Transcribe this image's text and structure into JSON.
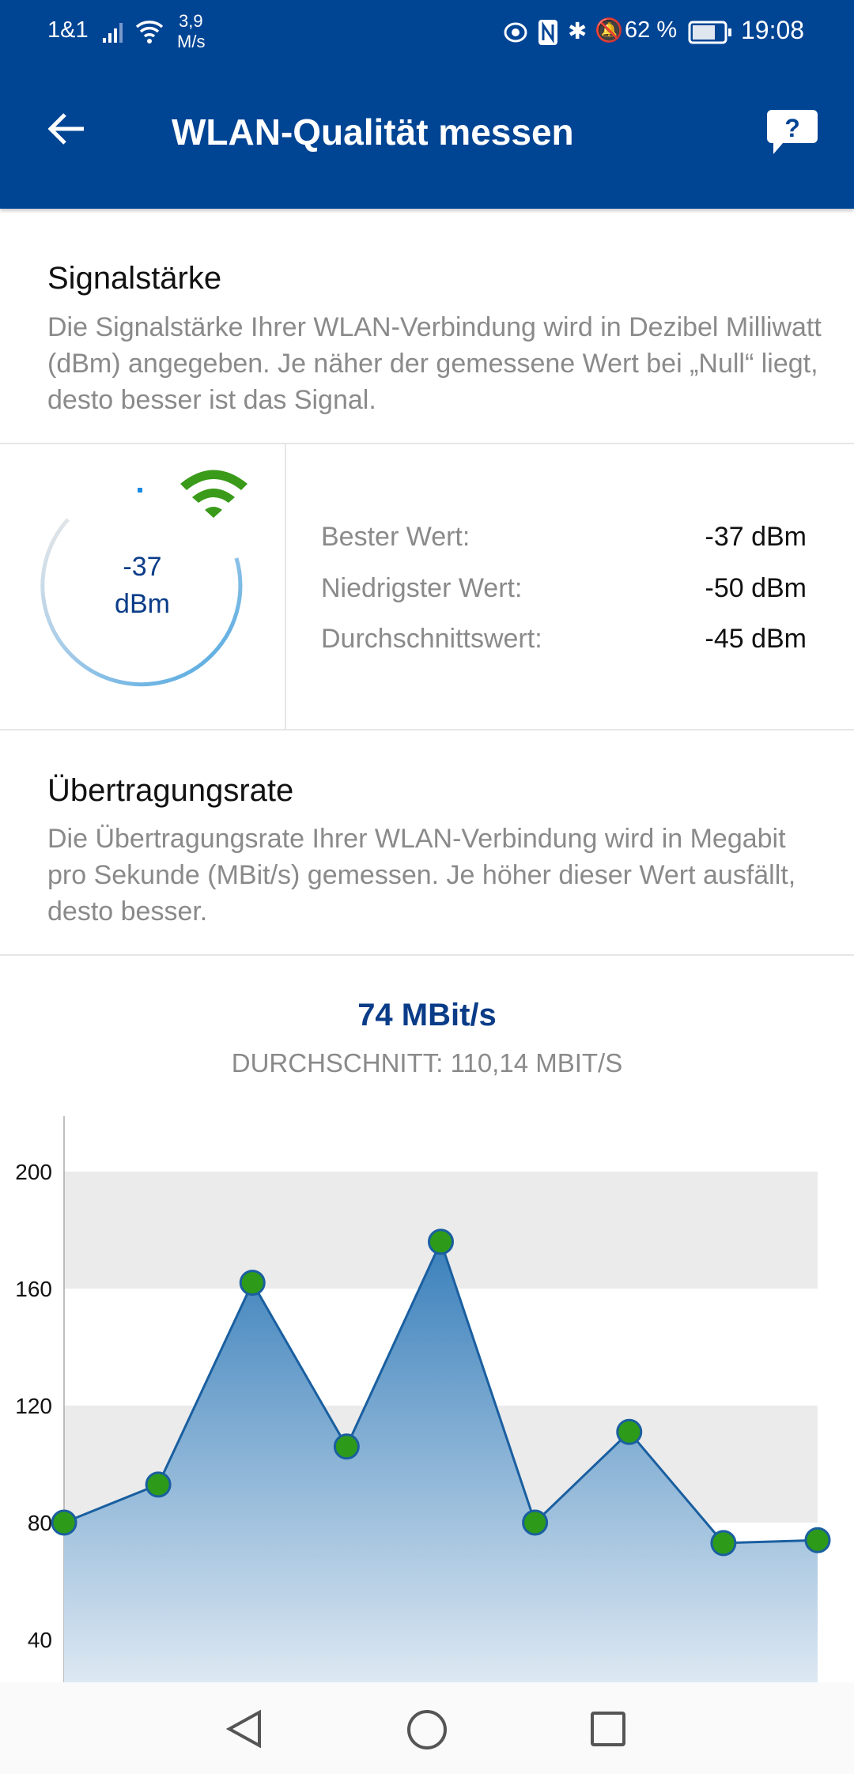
{
  "status_bar": {
    "carrier": "1&1",
    "speed_value": "3,9",
    "speed_unit": "M/s",
    "battery": "62 %",
    "time": "19:08",
    "icons": [
      "signal-icon",
      "wifi-icon",
      "eye-icon",
      "nfc-icon",
      "bluetooth-icon",
      "bell-off-icon",
      "battery-icon"
    ]
  },
  "app_bar": {
    "title": "WLAN-Qualität messen",
    "back_icon": "arrow-left-icon",
    "help_icon": "help-bubble-icon"
  },
  "signal": {
    "heading": "Signalstärke",
    "description": "Die Signalstärke Ihrer WLAN-Verbindung wird in Dezibel Milliwatt (dBm) angegeben. Je näher der gemessene Wert bei „Null“ liegt, desto besser ist das Signal.",
    "gauge_value": "-37",
    "gauge_unit": "dBm",
    "wifi_color": "#3a9a1a",
    "stats": [
      {
        "label": "Bester Wert:",
        "value": "-37 dBm"
      },
      {
        "label": "Niedrigster Wert:",
        "value": "-50 dBm"
      },
      {
        "label": "Durchschnittswert:",
        "value": "-45 dBm"
      }
    ]
  },
  "rate": {
    "heading": "Übertragungsrate",
    "description": "Die Übertragungsrate Ihrer WLAN-Verbindung wird in Megabit pro Sekunde (MBit/s) gemessen. Je höher dieser Wert ausfällt, desto besser.",
    "current": "74 MBit/s",
    "average": "DURCHSCHNITT: 110,14 MBIT/S"
  },
  "chart_data": {
    "type": "area",
    "y_ticks": [
      40,
      80,
      120,
      160,
      200
    ],
    "ylim": [
      20,
      220
    ],
    "values": [
      80,
      93,
      162,
      106,
      176,
      80,
      111,
      73,
      74
    ],
    "line_color": "#1a5fa0",
    "point_color": "#2e9a1a",
    "band_color": "#ebebeb"
  },
  "nav": {
    "back": "nav-back-icon",
    "home": "nav-home-icon",
    "recents": "nav-recents-icon"
  }
}
